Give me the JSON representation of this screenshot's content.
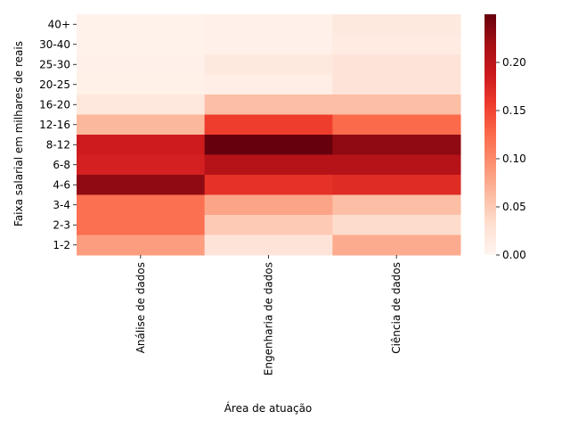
{
  "chart_data": {
    "type": "heatmap",
    "title": "",
    "xlabel": "Área de atuação",
    "ylabel": "Faixa salarial em milhares de reais",
    "x_categories": [
      "Análise de dados",
      "Engenharia de dados",
      "Ciência de dados"
    ],
    "y_categories": [
      "40+",
      "30-40",
      "25-30",
      "20-25",
      "16-20",
      "12-16",
      "8-12",
      "6-8",
      "4-6",
      "3-4",
      "2-3",
      "1-2"
    ],
    "values": [
      [
        0.005,
        0.007,
        0.018
      ],
      [
        0.005,
        0.007,
        0.015
      ],
      [
        0.007,
        0.018,
        0.025
      ],
      [
        0.008,
        0.01,
        0.025
      ],
      [
        0.02,
        0.06,
        0.06
      ],
      [
        0.065,
        0.155,
        0.125
      ],
      [
        0.185,
        0.25,
        0.23
      ],
      [
        0.18,
        0.205,
        0.205
      ],
      [
        0.23,
        0.165,
        0.17
      ],
      [
        0.12,
        0.08,
        0.06
      ],
      [
        0.12,
        0.05,
        0.035
      ],
      [
        0.085,
        0.025,
        0.075
      ]
    ],
    "colorbar": {
      "colormap": "Reds",
      "min": 0,
      "max": 0.25,
      "ticks": [
        0.0,
        0.05,
        0.1,
        0.15,
        0.2
      ],
      "tick_labels": [
        "0.00",
        "0.05",
        "0.10",
        "0.15",
        "0.20"
      ]
    },
    "grid": false,
    "legend": "colorbar-right"
  }
}
